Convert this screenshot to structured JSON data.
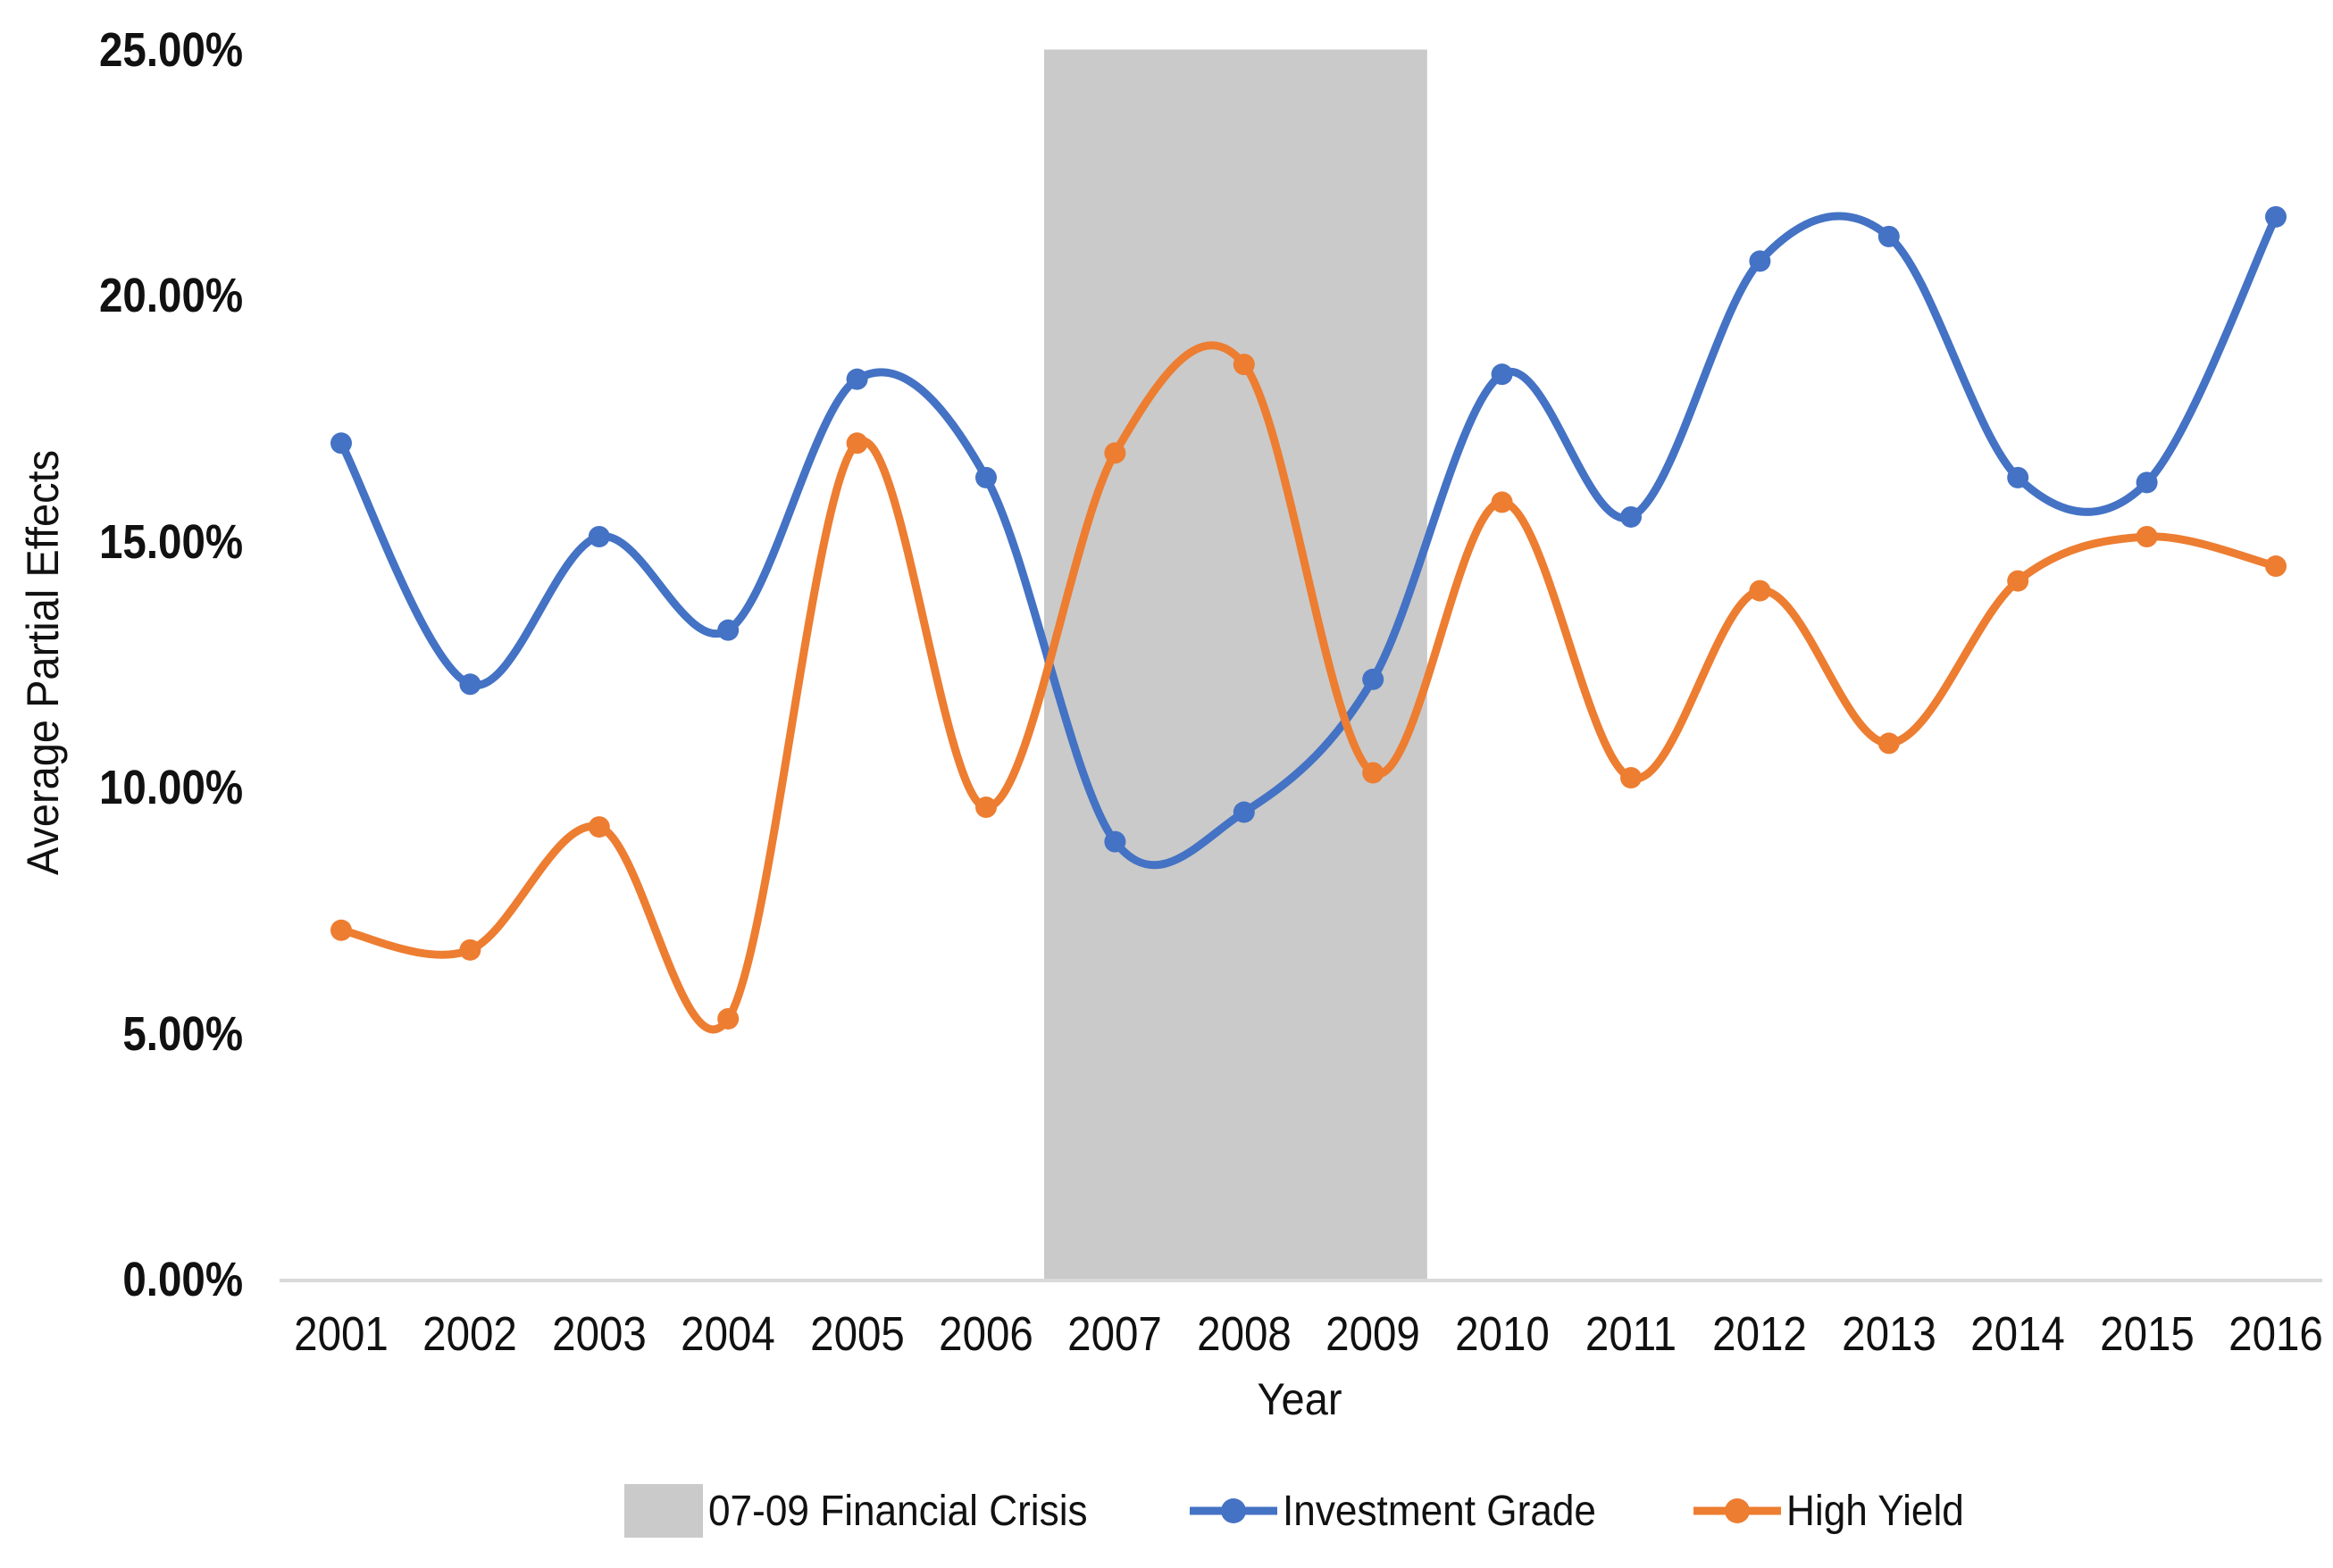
{
  "chart_data": {
    "type": "line",
    "x": [
      2001,
      2002,
      2003,
      2004,
      2005,
      2006,
      2007,
      2008,
      2009,
      2010,
      2011,
      2012,
      2013,
      2014,
      2015,
      2016
    ],
    "series": [
      {
        "name": "Investment Grade",
        "color": "#4472C4",
        "values": [
          17.0,
          12.1,
          15.1,
          13.2,
          18.3,
          16.3,
          8.9,
          9.5,
          12.2,
          18.4,
          15.5,
          20.7,
          21.2,
          16.3,
          16.2,
          21.6
        ]
      },
      {
        "name": "High Yield",
        "color": "#ED7D31",
        "values": [
          7.1,
          6.7,
          9.2,
          5.3,
          17.0,
          9.6,
          16.8,
          18.6,
          10.3,
          15.8,
          10.2,
          14.0,
          10.9,
          14.2,
          15.1,
          14.5
        ]
      }
    ],
    "title": "",
    "xlabel": "Year",
    "ylabel": "Average Partial Effects",
    "ylim": [
      0,
      25
    ],
    "grid": false,
    "legend_position": "bottom",
    "line_style": "smooth",
    "marker": "circle",
    "shaded_region": {
      "label": "07-09 Financial Crisis",
      "x_start": 2006.45,
      "x_end": 2009.42,
      "color": "#CACACA"
    }
  },
  "axes": {
    "y_title": "Average Partial Effects",
    "x_title": "Year",
    "y_ticks": [
      {
        "value": 0,
        "label": "0.00%"
      },
      {
        "value": 5,
        "label": "5.00%"
      },
      {
        "value": 10,
        "label": "10.00%"
      },
      {
        "value": 15,
        "label": "15.00%"
      },
      {
        "value": 20,
        "label": "20.00%"
      },
      {
        "value": 25,
        "label": "25.00%"
      }
    ],
    "x_ticks": [
      "2001",
      "2002",
      "2003",
      "2004",
      "2005",
      "2006",
      "2007",
      "2008",
      "2009",
      "2010",
      "2011",
      "2012",
      "2013",
      "2014",
      "2015",
      "2016"
    ],
    "axis_line_color": "#D9D9D9"
  },
  "legend": {
    "items": [
      {
        "label": "07-09 Financial Crisis",
        "swatch": "area",
        "color": "#CACACA"
      },
      {
        "label": "Investment Grade",
        "swatch": "line-marker",
        "color": "#4472C4"
      },
      {
        "label": "High Yield",
        "swatch": "line-marker",
        "color": "#ED7D31"
      }
    ]
  }
}
